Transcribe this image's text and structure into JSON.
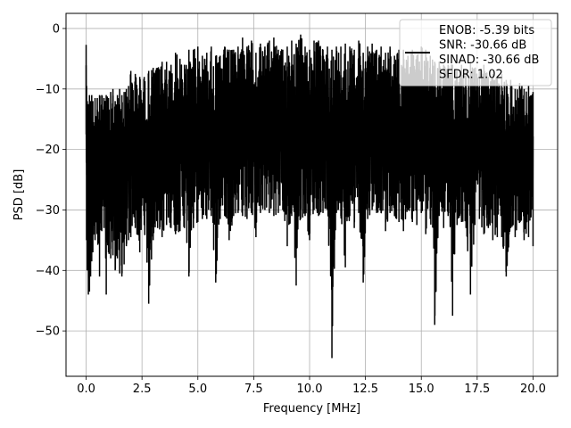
{
  "chart_data": {
    "type": "line",
    "title": "",
    "xlabel": "Frequency [MHz]",
    "ylabel": "PSD [dB]",
    "xlim": [
      -0.9,
      21.1
    ],
    "ylim": [
      -57.5,
      2.5
    ],
    "x_ticks": [
      0.0,
      2.5,
      5.0,
      7.5,
      10.0,
      12.5,
      15.0,
      17.5,
      20.0
    ],
    "x_tick_labels": [
      "0.0",
      "2.5",
      "5.0",
      "7.5",
      "10.0",
      "12.5",
      "15.0",
      "17.5",
      "20.0"
    ],
    "y_ticks": [
      0,
      -10,
      -20,
      -30,
      -40,
      -50
    ],
    "y_tick_labels": [
      "0",
      "−10",
      "−20",
      "−30",
      "−40",
      "−50"
    ],
    "grid": true,
    "legend_placement": "upper-right",
    "line_color": "#000000",
    "series": [
      {
        "name": "ENOB: -5.39 bits\nSNR: -30.66 dB\nSINAD: -30.66 dB\nSFDR: 1.02",
        "x": [
          0.0,
          0.02,
          0.05,
          0.1,
          0.15,
          0.2,
          0.25,
          0.3,
          0.4,
          0.5,
          0.6,
          0.7,
          0.8,
          0.9,
          1.0,
          1.1,
          1.2,
          1.3,
          1.4,
          1.5,
          1.6,
          1.7,
          1.8,
          1.9,
          2.0,
          2.2,
          2.4,
          2.6,
          2.8,
          3.0,
          3.2,
          3.4,
          3.6,
          3.8,
          4.0,
          4.2,
          4.4,
          4.6,
          4.8,
          5.0,
          5.2,
          5.4,
          5.6,
          5.8,
          6.0,
          6.2,
          6.4,
          6.6,
          6.8,
          7.0,
          7.2,
          7.4,
          7.6,
          7.8,
          8.0,
          8.2,
          8.4,
          8.6,
          8.8,
          9.0,
          9.2,
          9.4,
          9.6,
          9.8,
          10.0,
          10.2,
          10.4,
          10.6,
          10.8,
          11.0,
          11.2,
          11.4,
          11.6,
          11.8,
          12.0,
          12.2,
          12.4,
          12.6,
          12.8,
          13.0,
          13.2,
          13.4,
          13.6,
          13.8,
          14.0,
          14.2,
          14.4,
          14.6,
          14.8,
          15.0,
          15.2,
          15.4,
          15.6,
          15.8,
          16.0,
          16.2,
          16.4,
          16.6,
          16.8,
          17.0,
          17.2,
          17.4,
          17.6,
          17.8,
          18.0,
          18.2,
          18.4,
          18.6,
          18.8,
          19.0,
          19.2,
          19.4,
          19.6,
          19.8,
          20.0
        ],
        "y_max": [
          -2.7,
          -9.5,
          -12.0,
          -12.5,
          -11.0,
          -12.0,
          -11.0,
          -12.0,
          -11.5,
          -11.5,
          -11.0,
          -11.0,
          -11.5,
          -11.0,
          -11.5,
          -10.5,
          -10.0,
          -12.0,
          -11.0,
          -10.0,
          -11.0,
          -10.5,
          -10.0,
          -9.5,
          -7.0,
          -7.5,
          -8.0,
          -8.0,
          -7.0,
          -6.5,
          -6.5,
          -5.5,
          -5.5,
          -6.0,
          -4.0,
          -5.0,
          -6.0,
          -3.5,
          -3.5,
          -3.0,
          -4.5,
          -4.0,
          -3.0,
          -4.5,
          -4.5,
          -3.0,
          -3.5,
          -3.5,
          -3.0,
          -1.5,
          -3.0,
          -2.0,
          -4.0,
          -2.5,
          -3.0,
          -2.0,
          -1.5,
          -3.5,
          -3.5,
          -3.0,
          -2.0,
          -2.5,
          -1.0,
          -3.0,
          -3.5,
          -2.0,
          -2.0,
          -3.5,
          -3.0,
          -3.5,
          -3.0,
          -3.0,
          -2.5,
          -3.0,
          -3.5,
          -2.0,
          -4.0,
          -3.0,
          -2.5,
          -3.5,
          -3.0,
          -4.0,
          -3.0,
          -4.5,
          -3.5,
          -3.5,
          -4.5,
          -3.5,
          -4.5,
          -3.0,
          -3.5,
          -4.5,
          -5.5,
          -5.5,
          -6.0,
          -6.0,
          -6.0,
          -7.0,
          -6.0,
          -7.0,
          -5.5,
          -6.5,
          -7.0,
          -6.0,
          -8.0,
          -7.5,
          -8.0,
          -7.5,
          -8.5,
          -8.5,
          -10.0,
          -9.0,
          -10.0,
          -9.5,
          -10.5
        ],
        "y_min": [
          -17.5,
          -35.0,
          -40.0,
          -44.0,
          -43.5,
          -41.0,
          -38.5,
          -37.0,
          -35.0,
          -34.0,
          -41.0,
          -33.5,
          -33.0,
          -44.0,
          -37.0,
          -38.0,
          -37.5,
          -40.0,
          -38.0,
          -40.5,
          -41.0,
          -39.0,
          -36.0,
          -35.0,
          -34.5,
          -33.0,
          -37.0,
          -32.5,
          -45.5,
          -35.0,
          -33.0,
          -34.5,
          -32.5,
          -33.0,
          -34.0,
          -33.5,
          -33.0,
          -41.0,
          -33.0,
          -32.0,
          -31.5,
          -31.5,
          -31.0,
          -42.0,
          -31.5,
          -31.0,
          -35.0,
          -31.0,
          -30.5,
          -31.0,
          -31.5,
          -30.5,
          -34.5,
          -30.5,
          -30.0,
          -30.5,
          -31.0,
          -30.5,
          -30.0,
          -36.0,
          -31.0,
          -42.5,
          -31.5,
          -31.0,
          -35.0,
          -30.0,
          -31.0,
          -30.5,
          -30.0,
          -54.5,
          -30.5,
          -31.0,
          -39.5,
          -31.0,
          -33.0,
          -30.5,
          -42.0,
          -31.5,
          -30.0,
          -30.5,
          -30.5,
          -33.5,
          -30.5,
          -31.0,
          -32.0,
          -33.5,
          -30.0,
          -32.0,
          -32.5,
          -30.5,
          -34.0,
          -31.5,
          -49.0,
          -31.0,
          -33.0,
          -31.0,
          -47.5,
          -32.5,
          -32.0,
          -33.0,
          -44.0,
          -32.5,
          -31.5,
          -34.0,
          -33.0,
          -35.0,
          -34.5,
          -34.5,
          -41.0,
          -33.0,
          -34.5,
          -32.0,
          -35.0,
          -34.5,
          -36.0
        ]
      }
    ]
  }
}
